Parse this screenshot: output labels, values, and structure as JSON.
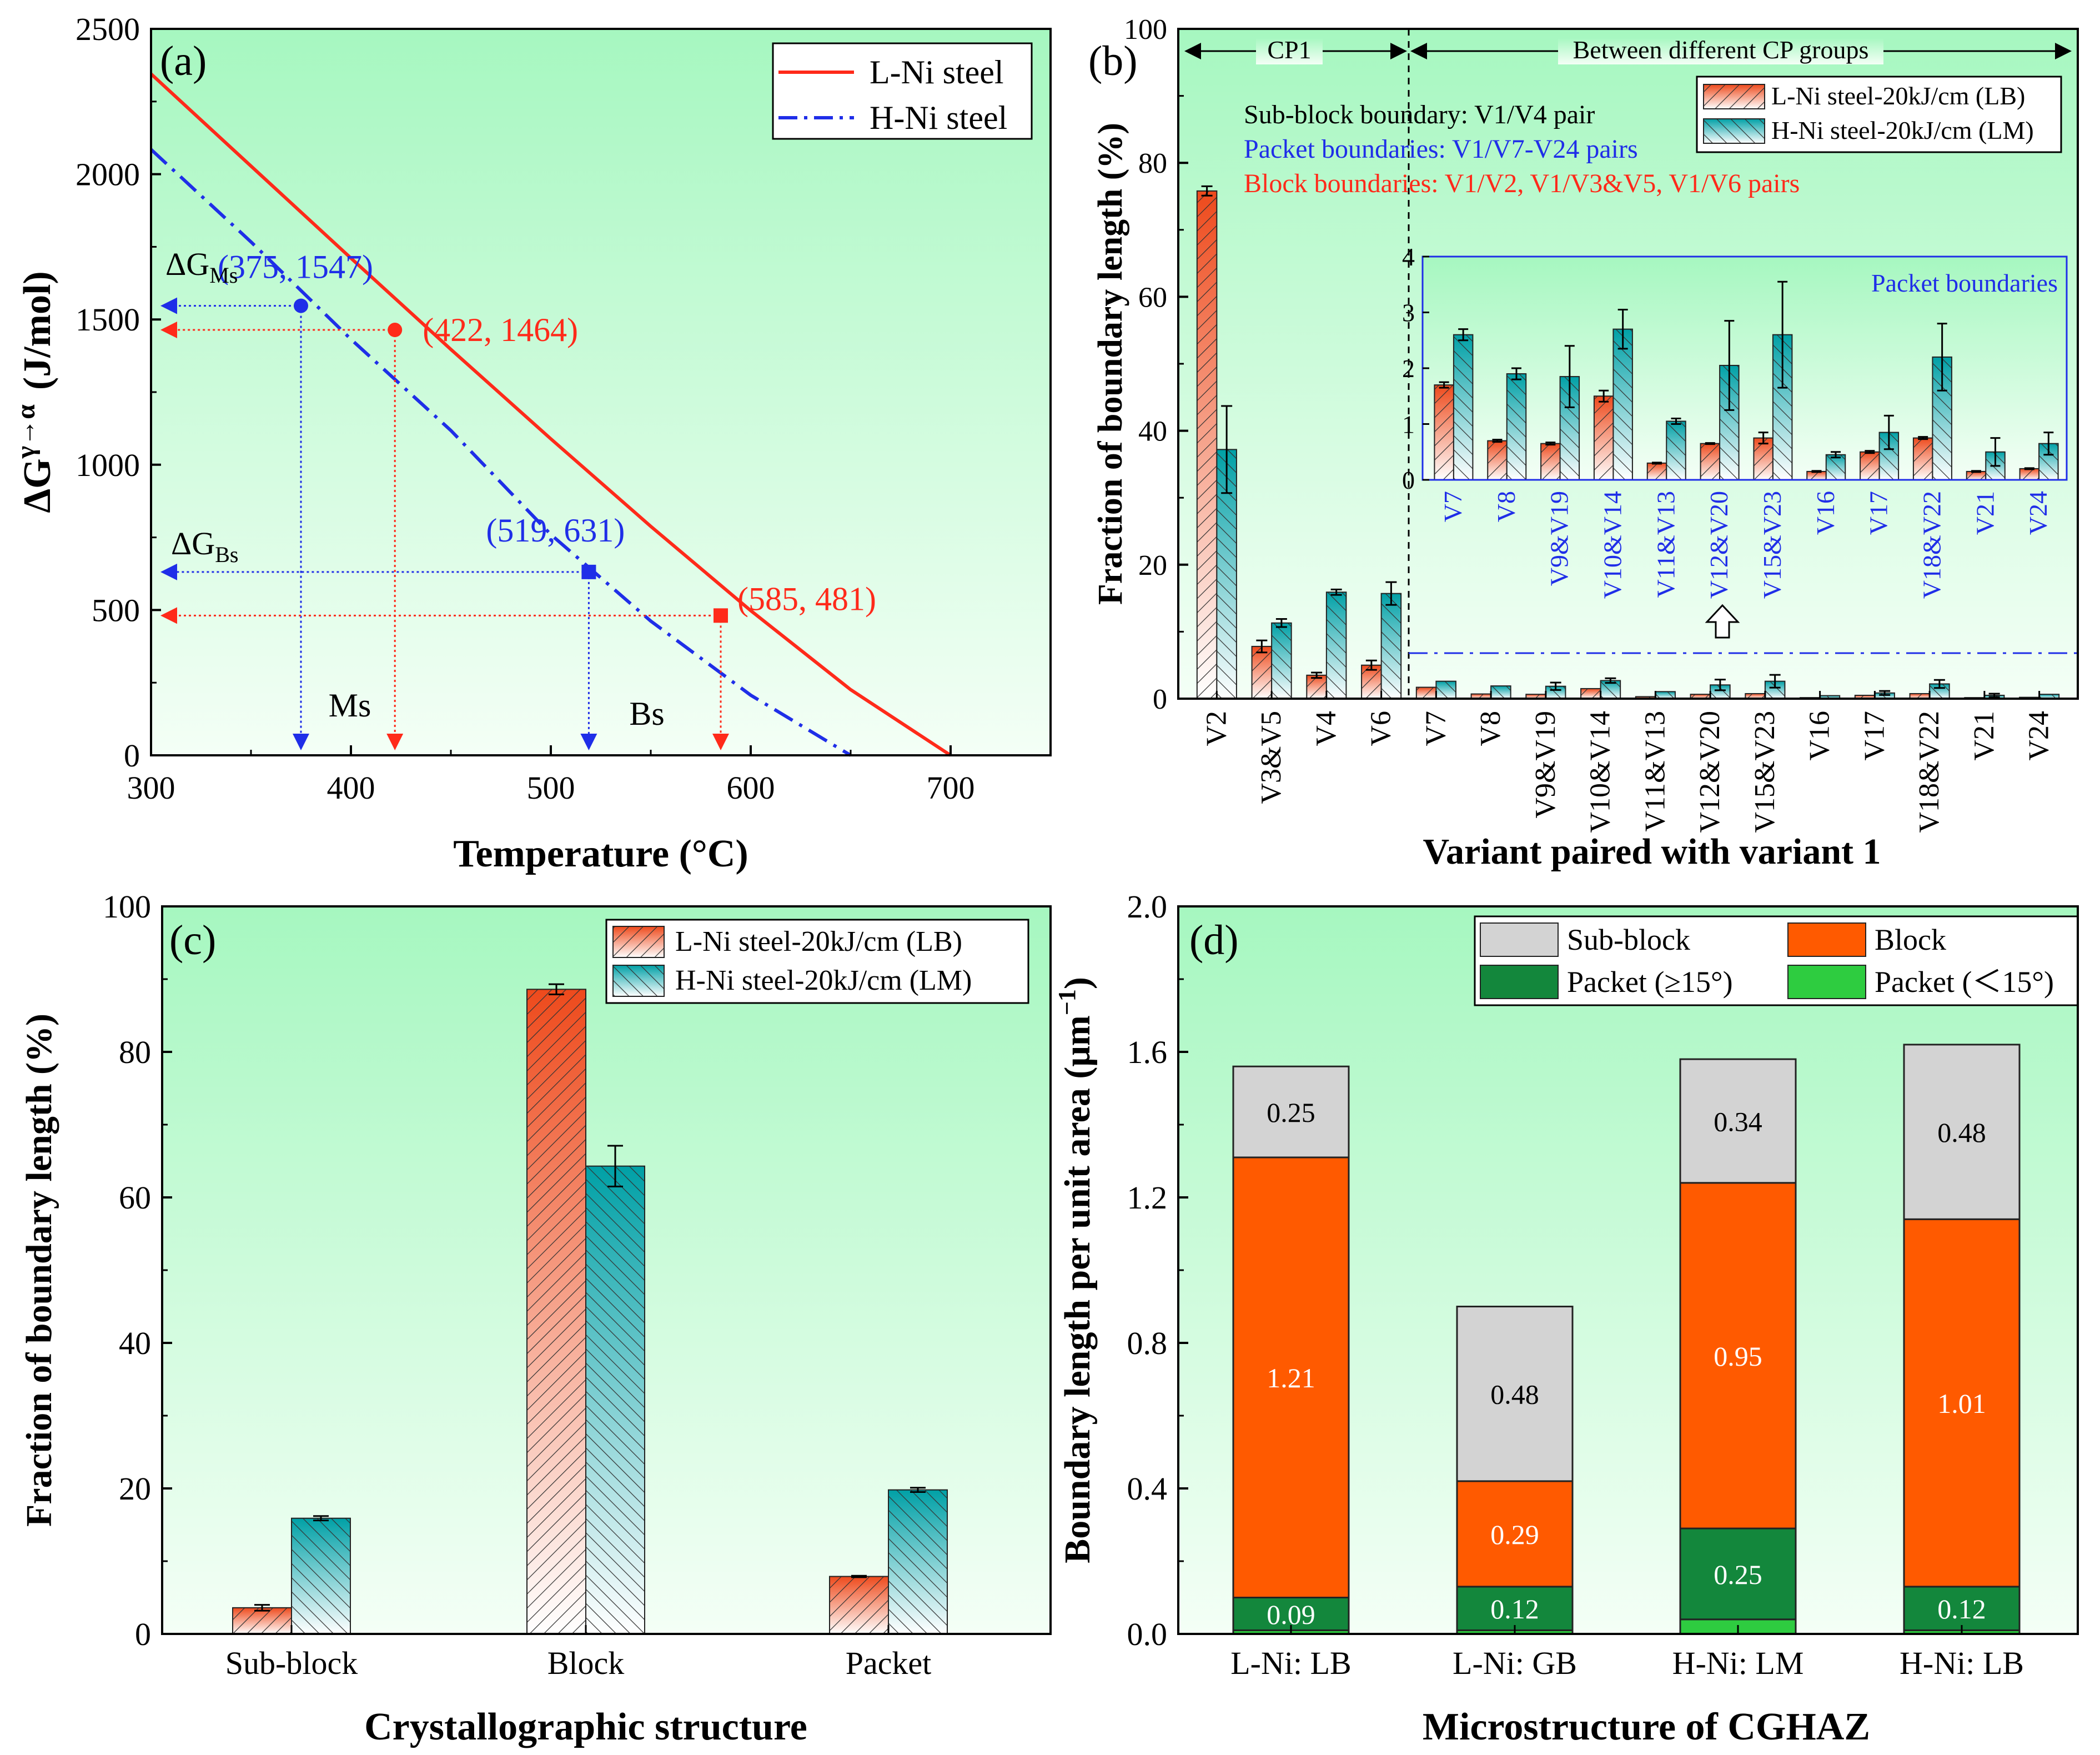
{
  "colors": {
    "bg_top": "#a6f7c0",
    "bg_bottom": "#f4fff6",
    "lni": "#ff2a1a",
    "hni": "#1f2ee8",
    "orange": "#f0592a",
    "orange_light": "#ffd9cc",
    "teal": "#00a3a8",
    "teal_light": "#d8f6f3",
    "sub_block": "#d3d3d3",
    "block": "#ff5a00",
    "packet_ge": "#13873c",
    "packet_lt": "#2ecc40"
  },
  "chart_data": [
    {
      "panel": "(a)",
      "type": "line",
      "xlabel": "Temperature (°C)",
      "ylabel_parts": [
        "ΔG",
        "γ→α",
        "(J/mol)"
      ],
      "xlim": [
        300,
        750
      ],
      "ylim": [
        0,
        2500
      ],
      "xticks": [
        300,
        400,
        500,
        600,
        700
      ],
      "yticks": [
        0,
        500,
        1000,
        1500,
        2000,
        2500
      ],
      "series": [
        {
          "name": "L-Ni steel",
          "style": "solid",
          "color": "#ff2a1a",
          "x": [
            300,
            350,
            400,
            450,
            500,
            550,
            600,
            650,
            700
          ],
          "y": [
            2345,
            2028,
            1711,
            1397,
            1089,
            788,
            498,
            226,
            0
          ]
        },
        {
          "name": "H-Ni steel",
          "style": "dashdot",
          "color": "#1f2ee8",
          "x": [
            300,
            350,
            400,
            450,
            500,
            550,
            600,
            650
          ],
          "y": [
            2085,
            1767,
            1432,
            1118,
            760,
            462,
            207,
            0
          ]
        }
      ],
      "points": [
        {
          "label": "(375, 1547)",
          "x": 375,
          "y": 1547,
          "marker": "circle",
          "color": "#1f2ee8"
        },
        {
          "label": "(422, 1464)",
          "x": 422,
          "y": 1464,
          "marker": "circle",
          "color": "#ff2a1a"
        },
        {
          "label": "(519, 631)",
          "x": 519,
          "y": 631,
          "marker": "square",
          "color": "#1f2ee8"
        },
        {
          "label": "(585, 481)",
          "x": 585,
          "y": 481,
          "marker": "square",
          "color": "#ff2a1a"
        }
      ],
      "annotations": {
        "dG_ms_main": "ΔG",
        "dG_ms_sub": "Ms",
        "dG_bs_main": "ΔG",
        "dG_bs_sub": "Bs",
        "ms": "Ms",
        "bs": "Bs"
      }
    },
    {
      "panel": "(b)",
      "type": "bar",
      "xlabel": "Variant paired with variant 1",
      "ylabel": "Fraction of boundary length (%)",
      "ylim": [
        0,
        100
      ],
      "yticks": [
        0,
        20,
        40,
        60,
        80,
        100
      ],
      "categories": [
        "V2",
        "V3&V5",
        "V4",
        "V6",
        "V7",
        "V8",
        "V9&V19",
        "V10&V14",
        "V11&V13",
        "V12&V20",
        "V15&V23",
        "V16",
        "V17",
        "V18&V22",
        "V21",
        "V24"
      ],
      "series": [
        {
          "name": "L-Ni steel-20kJ/cm (LB)",
          "values": [
            75.8,
            7.8,
            3.5,
            5.0,
            1.7,
            0.7,
            0.65,
            1.5,
            0.3,
            0.65,
            0.75,
            0.15,
            0.5,
            0.75,
            0.15,
            0.2
          ],
          "errors": [
            0.7,
            0.9,
            0.4,
            0.7,
            0.05,
            0.02,
            0.02,
            0.1,
            0.01,
            0.01,
            0.1,
            0.01,
            0.02,
            0.02,
            0.01,
            0.01
          ]
        },
        {
          "name": "H-Ni steel-20kJ/cm (LM)",
          "values": [
            37.2,
            11.3,
            15.9,
            15.7,
            2.6,
            1.9,
            1.85,
            2.7,
            1.05,
            2.05,
            2.6,
            0.45,
            0.85,
            2.2,
            0.5,
            0.65
          ],
          "errors": [
            6.5,
            0.6,
            0.4,
            1.7,
            0.1,
            0.1,
            0.55,
            0.35,
            0.05,
            0.8,
            0.95,
            0.05,
            0.3,
            0.6,
            0.25,
            0.2
          ]
        }
      ],
      "header_cp1": "CP1",
      "header_between": "Between different CP groups",
      "notes": [
        {
          "text": "Sub-block boundary: V1/V4 pair",
          "color": "#000000"
        },
        {
          "text": "Packet boundaries: V1/V7-V24 pairs",
          "color": "#1f2ee8"
        },
        {
          "text": "Block boundaries: V1/V2, V1/V3&V5, V1/V6 pairs",
          "color": "#ff2a1a"
        }
      ],
      "inset": {
        "title": "Packet boundaries",
        "ylim": [
          0,
          4
        ],
        "yticks": [
          0,
          1,
          2,
          3,
          4
        ],
        "categories": [
          "V7",
          "V8",
          "V9&V19",
          "V10&V14",
          "V11&V13",
          "V12&V20",
          "V15&V23",
          "V16",
          "V17",
          "V18&V22",
          "V21",
          "V24"
        ]
      }
    },
    {
      "panel": "(c)",
      "type": "bar",
      "xlabel": "Crystallographic structure",
      "ylabel": "Fraction of boundary length (%)",
      "ylim": [
        0,
        100
      ],
      "yticks": [
        0,
        20,
        40,
        60,
        80,
        100
      ],
      "categories": [
        "Sub-block",
        "Block",
        "Packet"
      ],
      "series": [
        {
          "name": "L-Ni steel-20kJ/cm (LB)",
          "values": [
            3.6,
            88.6,
            7.9
          ],
          "errors": [
            0.4,
            0.7,
            0.1
          ]
        },
        {
          "name": "H-Ni steel-20kJ/cm (LM)",
          "values": [
            15.9,
            64.3,
            19.8
          ],
          "errors": [
            0.3,
            2.8,
            0.3
          ]
        }
      ]
    },
    {
      "panel": "(d)",
      "type": "bar",
      "stacked": true,
      "xlabel": "Microstructure of CGHAZ",
      "ylabel": "Boundary length per unit area (μm",
      "ylabel_sup": "−1",
      "ylabel_close": ")",
      "ylim": [
        0,
        2.0
      ],
      "yticks": [
        "0.0",
        "0.4",
        "0.8",
        "1.2",
        "1.6",
        "2.0"
      ],
      "categories": [
        "L-Ni: LB",
        "L-Ni: GB",
        "H-Ni: LM",
        "H-Ni: LB"
      ],
      "series": [
        {
          "name": "Packet (＜15°)",
          "values": [
            0.01,
            0.01,
            0.04,
            0.01
          ]
        },
        {
          "name": "Packet (≥15°)",
          "values": [
            0.09,
            0.12,
            0.25,
            0.12
          ]
        },
        {
          "name": "Block",
          "values": [
            1.21,
            0.29,
            0.95,
            1.01
          ]
        },
        {
          "name": "Sub-block",
          "values": [
            0.25,
            0.48,
            0.34,
            0.48
          ]
        }
      ],
      "labels": [
        [
          "",
          "0.09",
          "1.21",
          "0.25"
        ],
        [
          "",
          "0.12",
          "0.29",
          "0.48"
        ],
        [
          "",
          "0.25",
          "0.95",
          "0.34"
        ],
        [
          "",
          "0.12",
          "1.01",
          "0.48"
        ]
      ],
      "legend": [
        "Sub-block",
        "Block",
        "Packet (≥15°)",
        "Packet (＜15°)"
      ]
    }
  ]
}
